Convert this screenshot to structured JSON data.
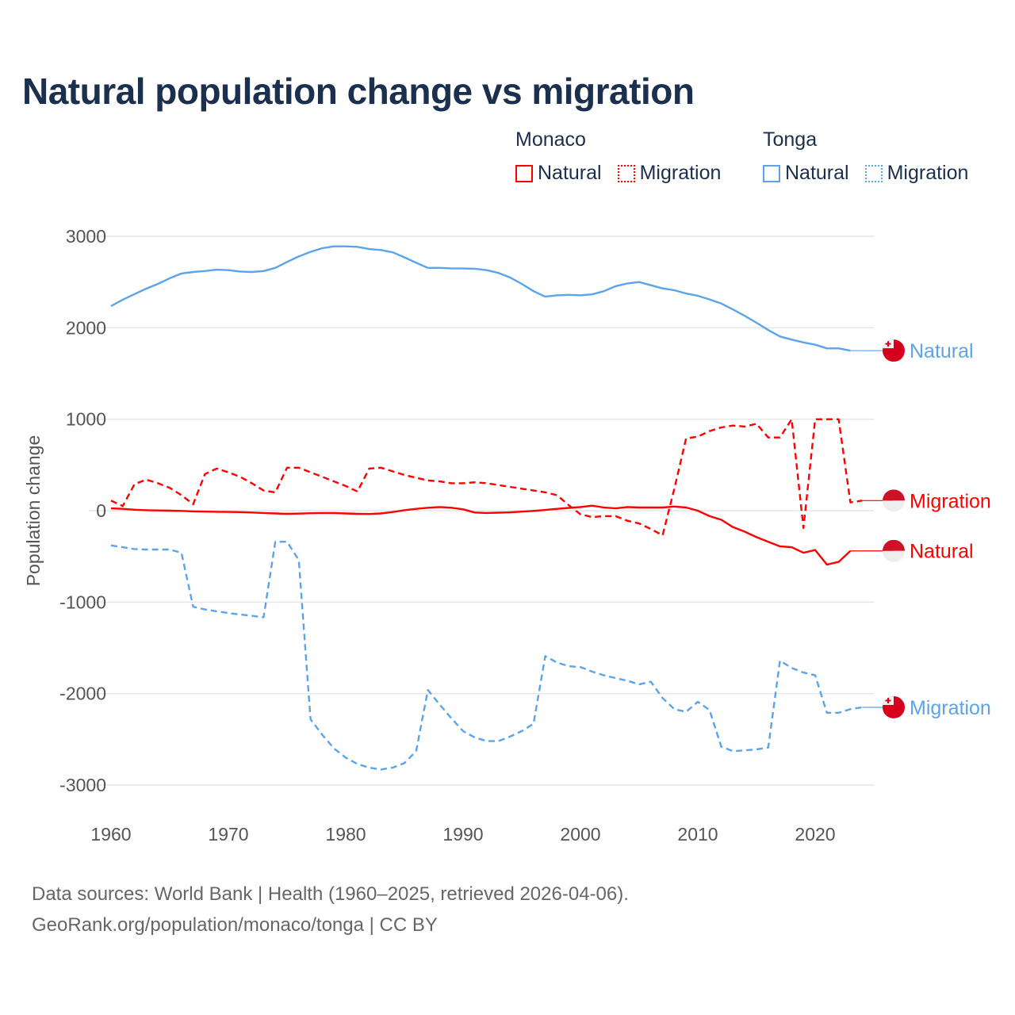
{
  "chart_data": {
    "type": "line",
    "title": "Natural population change vs migration",
    "xlabel": "",
    "ylabel": "Population change",
    "xlim": [
      1960,
      2025
    ],
    "ylim": [
      -3000,
      3000
    ],
    "x_ticks": [
      1960,
      1970,
      1980,
      1990,
      2000,
      2010,
      2020
    ],
    "y_ticks": [
      3000,
      2000,
      1000,
      0,
      -1000,
      -2000,
      -3000
    ],
    "y_tick_labels": [
      "3000",
      "2000",
      "1000",
      "0",
      "-1000",
      "-2000",
      "-3000"
    ],
    "grid": true,
    "legend": {
      "placement": "top-right",
      "groups": [
        {
          "name": "Monaco",
          "items": [
            "Natural",
            "Migration"
          ]
        },
        {
          "name": "Tonga",
          "items": [
            "Natural",
            "Migration"
          ]
        }
      ]
    },
    "series": [
      {
        "name": "Tonga Natural",
        "country": "Tonga",
        "kind": "Natural",
        "color": "#5ba4ea",
        "dash": false,
        "end_label": "Natural",
        "x_start": 1960,
        "values": [
          2237,
          2307,
          2368,
          2428,
          2480,
          2541,
          2593,
          2610,
          2620,
          2635,
          2630,
          2615,
          2610,
          2620,
          2655,
          2720,
          2780,
          2830,
          2870,
          2890,
          2890,
          2885,
          2860,
          2850,
          2825,
          2770,
          2710,
          2655,
          2655,
          2650,
          2648,
          2645,
          2630,
          2600,
          2550,
          2480,
          2400,
          2340,
          2355,
          2360,
          2355,
          2365,
          2400,
          2455,
          2485,
          2500,
          2465,
          2430,
          2410,
          2375,
          2350,
          2310,
          2265,
          2200,
          2130,
          2055,
          1975,
          1905,
          1870,
          1840,
          1815,
          1775,
          1775,
          1750
        ]
      },
      {
        "name": "Tonga Migration",
        "country": "Tonga",
        "kind": "Migration",
        "color": "#5ba4ea",
        "dash": true,
        "end_label": "Migration",
        "x_start": 1960,
        "values": [
          -380,
          -400,
          -420,
          -425,
          -425,
          -425,
          -460,
          -1050,
          -1080,
          -1100,
          -1120,
          -1135,
          -1150,
          -1165,
          -340,
          -340,
          -540,
          -2280,
          -2450,
          -2600,
          -2700,
          -2770,
          -2810,
          -2830,
          -2810,
          -2760,
          -2630,
          -1960,
          -2120,
          -2270,
          -2410,
          -2480,
          -2520,
          -2520,
          -2470,
          -2410,
          -2330,
          -1590,
          -1660,
          -1700,
          -1710,
          -1760,
          -1800,
          -1830,
          -1860,
          -1900,
          -1870,
          -2050,
          -2170,
          -2200,
          -2090,
          -2180,
          -2580,
          -2630,
          -2620,
          -2610,
          -2590,
          -1640,
          -1720,
          -1770,
          -1800,
          -2210,
          -2210,
          -2170,
          -2150
        ]
      },
      {
        "name": "Monaco Natural",
        "country": "Monaco",
        "kind": "Natural",
        "color": "#ff0000",
        "dash": false,
        "end_label": "Natural",
        "x_start": 1960,
        "values": [
          25,
          20,
          10,
          5,
          3,
          0,
          -3,
          -8,
          -10,
          -12,
          -14,
          -16,
          -20,
          -25,
          -30,
          -35,
          -32,
          -28,
          -25,
          -26,
          -30,
          -35,
          -36,
          -30,
          -15,
          5,
          20,
          32,
          40,
          32,
          15,
          -20,
          -25,
          -22,
          -18,
          -10,
          -3,
          8,
          20,
          30,
          40,
          55,
          35,
          25,
          40,
          35,
          35,
          35,
          45,
          35,
          0,
          -60,
          -100,
          -180,
          -230,
          -290,
          -340,
          -390,
          -400,
          -460,
          -430,
          -590,
          -560,
          -440
        ]
      },
      {
        "name": "Monaco Migration",
        "country": "Monaco",
        "kind": "Migration",
        "color": "#ff0000",
        "dash": true,
        "end_label": "Migration",
        "x_start": 1960,
        "values": [
          110,
          50,
          290,
          340,
          300,
          250,
          170,
          70,
          400,
          460,
          420,
          370,
          300,
          220,
          200,
          470,
          470,
          420,
          370,
          320,
          270,
          210,
          460,
          470,
          430,
          390,
          360,
          330,
          320,
          300,
          300,
          310,
          300,
          280,
          260,
          240,
          220,
          200,
          170,
          60,
          -40,
          -70,
          -60,
          -60,
          -110,
          -140,
          -200,
          -270,
          240,
          790,
          810,
          870,
          910,
          930,
          920,
          950,
          800,
          800,
          1000,
          -190,
          1000,
          1000,
          1000,
          90,
          110
        ]
      }
    ]
  },
  "footer": {
    "line1": "Data sources: World Bank | Health (1960–2025, retrieved 2026-04-06).",
    "line2": "GeoRank.org/population/monaco/tonga | CC BY"
  }
}
